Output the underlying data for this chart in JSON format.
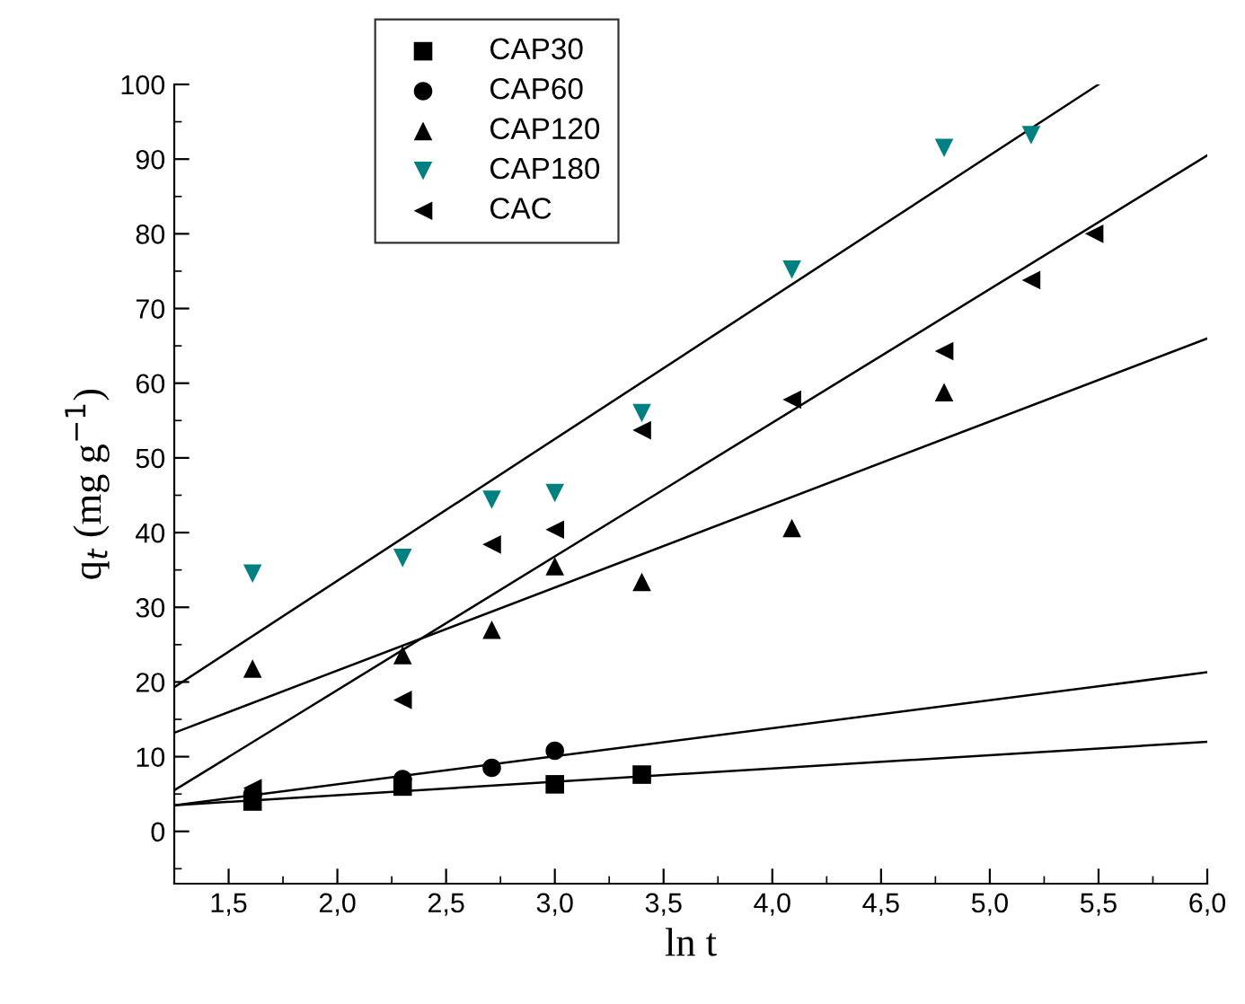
{
  "chart_data": {
    "type": "scatter",
    "xlabel": "ln t",
    "ylabel": "q$_{t}$ (mg g$^{−1}$)",
    "xlim": [
      1.25,
      6.0
    ],
    "ylim": [
      -7,
      100
    ],
    "xticks": [
      {
        "value": 1.5,
        "label": "1,5"
      },
      {
        "value": 2.0,
        "label": "2,0"
      },
      {
        "value": 2.5,
        "label": "2,5"
      },
      {
        "value": 3.0,
        "label": "3,0"
      },
      {
        "value": 3.5,
        "label": "3,5"
      },
      {
        "value": 4.0,
        "label": "4,0"
      },
      {
        "value": 4.5,
        "label": "4,5"
      },
      {
        "value": 5.0,
        "label": "5,0"
      },
      {
        "value": 5.5,
        "label": "5,5"
      },
      {
        "value": 6.0,
        "label": "6,0"
      }
    ],
    "yticks": [
      0,
      10,
      20,
      30,
      40,
      50,
      60,
      70,
      80,
      90,
      100
    ],
    "grid": false,
    "legend": "top left",
    "series": [
      {
        "name": "CAP30",
        "marker": "square",
        "color": "#000000",
        "x": [
          1.61,
          2.3,
          3.0,
          3.4
        ],
        "values": [
          4.0,
          6.0,
          6.3,
          7.6
        ]
      },
      {
        "name": "CAP60",
        "marker": "circle",
        "color": "#000000",
        "x": [
          1.61,
          2.3,
          2.71,
          3.0
        ],
        "values": [
          5.0,
          7.0,
          8.5,
          10.8
        ]
      },
      {
        "name": "CAP120",
        "marker": "triangle",
        "color": "#000000",
        "x": [
          1.61,
          2.3,
          2.71,
          3.0,
          3.4,
          4.09,
          4.79
        ],
        "values": [
          21.8,
          23.6,
          27.0,
          35.5,
          33.4,
          40.6,
          58.8
        ]
      },
      {
        "name": "CAP180",
        "marker": "triangle_down",
        "color": "#008080",
        "x": [
          1.61,
          2.3,
          2.71,
          3.0,
          3.4,
          4.09,
          4.79,
          5.19
        ],
        "values": [
          34.5,
          36.6,
          44.4,
          45.3,
          56.0,
          75.2,
          91.5,
          93.2
        ]
      },
      {
        "name": "CAC",
        "marker": "triangle_left",
        "color": "#000000",
        "x": [
          1.61,
          2.3,
          2.71,
          3.0,
          3.4,
          4.09,
          4.79,
          5.19,
          5.48
        ],
        "values": [
          5.8,
          17.6,
          38.4,
          40.4,
          53.7,
          57.8,
          64.3,
          73.8,
          80.0
        ]
      },
      {
        "type": "line",
        "color": "#000000",
        "x": [
          1.25,
          6.0
        ],
        "values": [
          3.5,
          12.0
        ]
      },
      {
        "type": "line",
        "color": "#000000",
        "x": [
          1.25,
          6.0
        ],
        "values": [
          3.5,
          21.3
        ]
      },
      {
        "type": "line",
        "color": "#000000",
        "x": [
          1.25,
          6.0
        ],
        "values": [
          13.2,
          66.0
        ]
      },
      {
        "type": "line",
        "color": "#000000",
        "x": [
          1.25,
          5.5
        ],
        "values": [
          19.3,
          100.0
        ]
      },
      {
        "type": "line",
        "color": "#000000",
        "x": [
          1.25,
          6.0
        ],
        "values": [
          5.5,
          90.5
        ]
      }
    ]
  }
}
